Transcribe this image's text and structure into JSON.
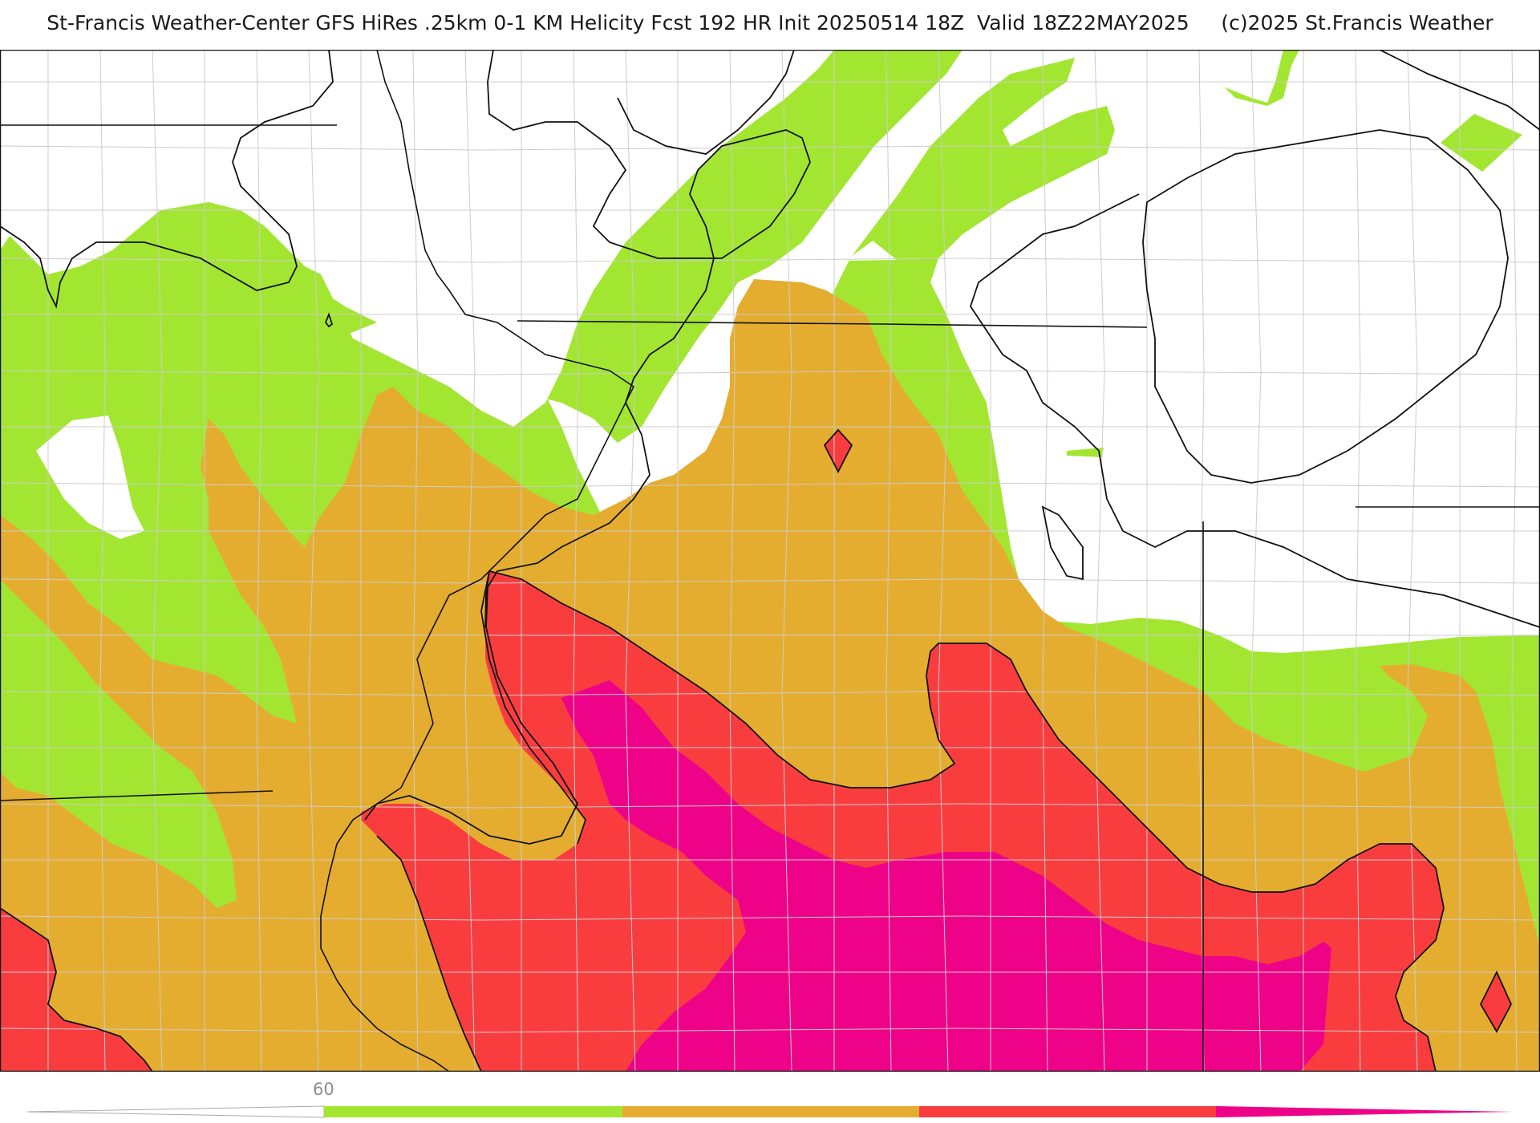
{
  "title": "St-Francis Weather-Center GFS HiRes .25km 0-1 KM Helicity Fcst 192 HR Init 20250514 18Z  Valid 18Z22MAY2025     (c)2025 St.Francis Weather",
  "legend": {
    "tick_label": "60",
    "colors": {
      "white_band": "#ffffff",
      "green": "#a3e632",
      "orange": "#e5ad2f",
      "red": "#f93d3f",
      "magenta": "#ee0388"
    }
  },
  "map": {
    "background": "#ffffff",
    "border_color": "#111111",
    "county_color": "#cccccc",
    "contour_color": "#111111"
  }
}
